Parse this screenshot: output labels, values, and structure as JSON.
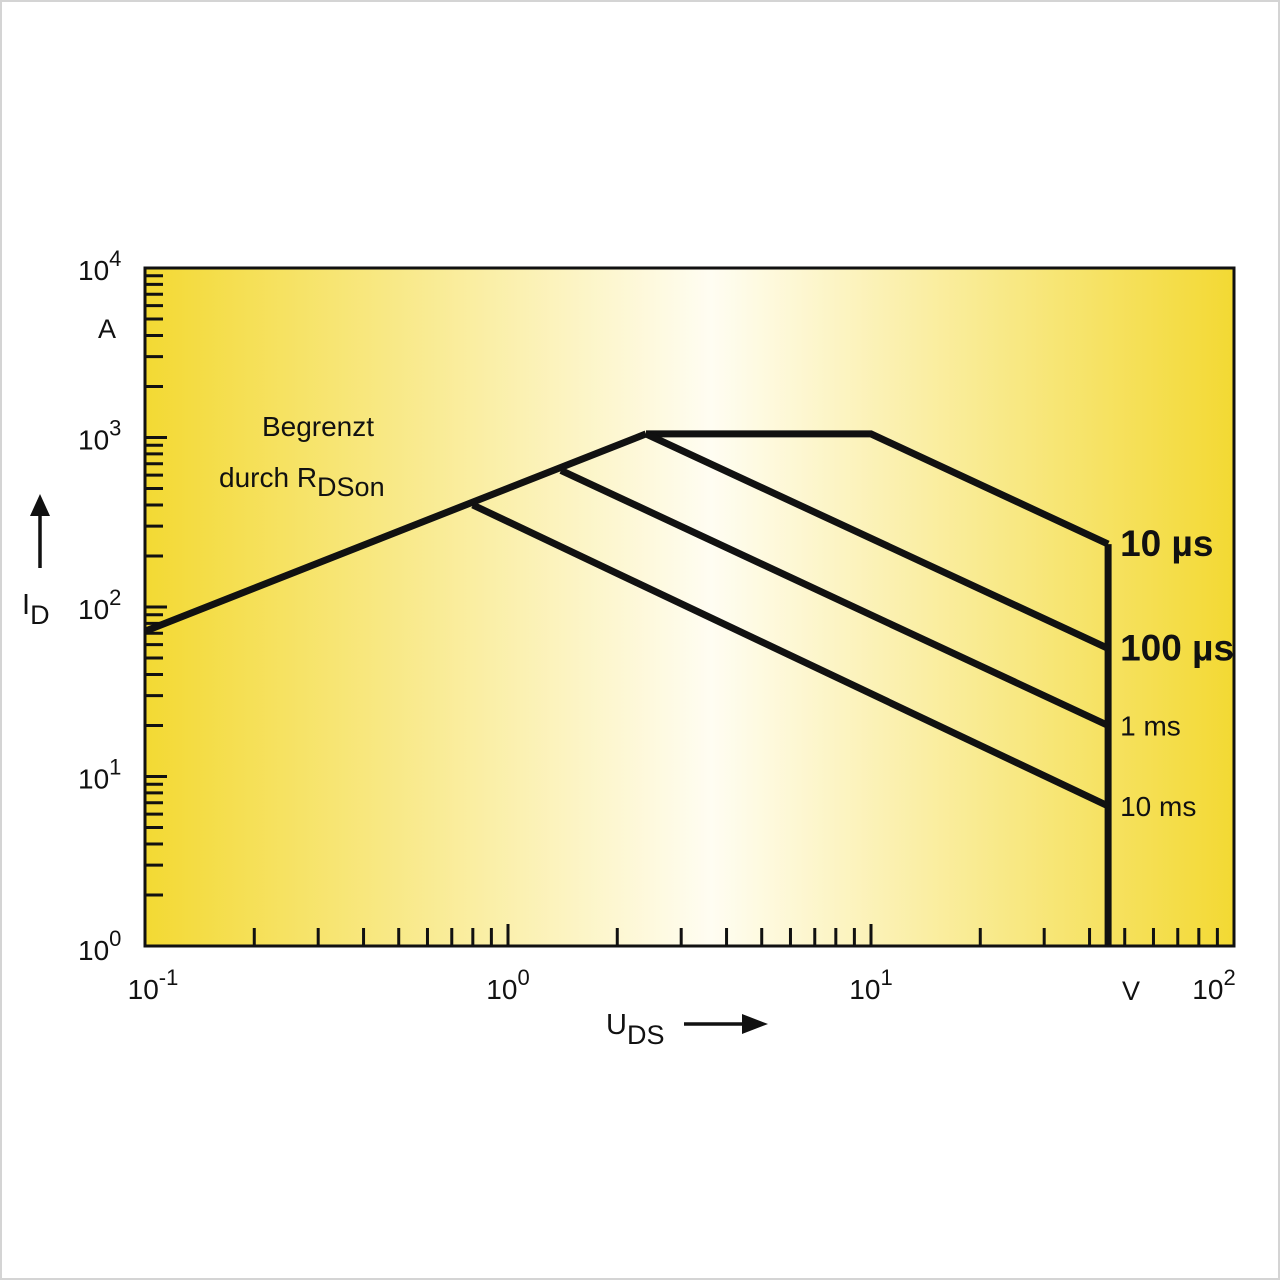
{
  "chart_data": {
    "type": "line",
    "x_scale": "log",
    "y_scale": "log",
    "xlim": [
      0.1,
      100
    ],
    "ylim": [
      1,
      10000
    ],
    "x_ticks": [
      {
        "base": "10",
        "exp": "-1",
        "value": 0.1
      },
      {
        "base": "10",
        "exp": "0",
        "value": 1
      },
      {
        "base": "10",
        "exp": "1",
        "value": 10
      },
      {
        "base": "10",
        "exp": "2",
        "value": 100
      }
    ],
    "y_ticks": [
      {
        "base": "10",
        "exp": "0",
        "value": 1
      },
      {
        "base": "10",
        "exp": "1",
        "value": 10
      },
      {
        "base": "10",
        "exp": "2",
        "value": 100
      },
      {
        "base": "10",
        "exp": "3",
        "value": 1000
      },
      {
        "base": "10",
        "exp": "4",
        "value": 10000
      }
    ],
    "xlabel": {
      "main": "U",
      "sub": "DS"
    },
    "ylabel": {
      "main": "I",
      "sub": "D"
    },
    "x_unit": "V",
    "y_unit": "A",
    "annotation": {
      "line1": "Begrenzt",
      "line2_main": "durch R",
      "line2_sub": "DSon"
    },
    "background_gradient": [
      "#f3d933",
      "#fffdf2",
      "#f3d933"
    ],
    "series": [
      {
        "name": "10 µs",
        "bold": true,
        "points": [
          [
            2.4,
            1050
          ],
          [
            10,
            1050
          ],
          [
            45,
            235
          ]
        ]
      },
      {
        "name": "100 µs",
        "bold": true,
        "points": [
          [
            2.4,
            1050
          ],
          [
            45,
            57
          ]
        ]
      },
      {
        "name": "1 ms",
        "bold": false,
        "points": [
          [
            1.4,
            640
          ],
          [
            45,
            20
          ]
        ]
      },
      {
        "name": "10 ms",
        "bold": false,
        "points": [
          [
            0.8,
            400
          ],
          [
            45,
            6.7
          ]
        ]
      }
    ],
    "rdson_limit": {
      "points": [
        [
          0.1,
          72
        ],
        [
          2.4,
          1050
        ]
      ]
    },
    "voltage_limit": {
      "points": [
        [
          45,
          235
        ],
        [
          45,
          1
        ]
      ]
    }
  }
}
